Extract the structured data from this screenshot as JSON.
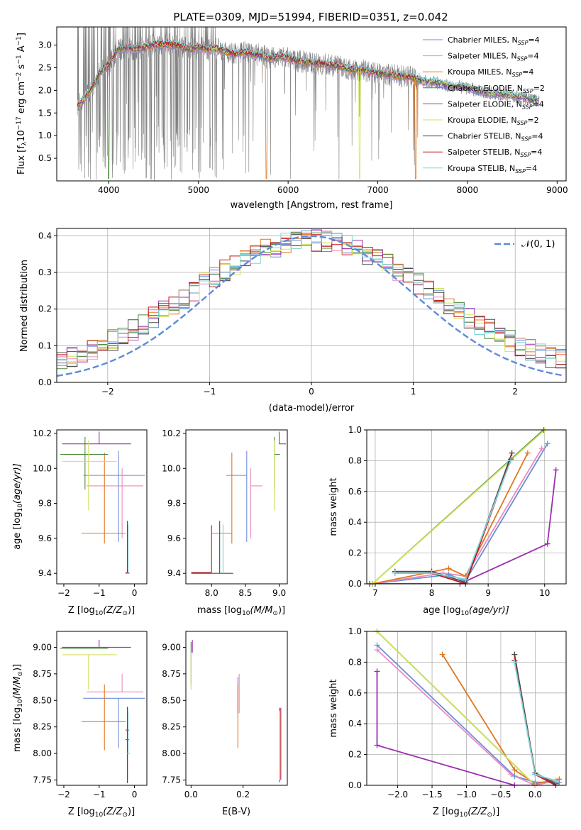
{
  "figure": {
    "title": "PLATE=0309, MJD=51994, FIBERID=0351, z=0.042"
  },
  "series_styles": [
    {
      "name": "Chabrier MILES, N",
      "sub": "SSP",
      "suffix": "=4",
      "color": "#6c8ed6"
    },
    {
      "name": "Salpeter MILES, N",
      "sub": "SSP",
      "suffix": "=4",
      "color": "#e98bbf"
    },
    {
      "name": "Kroupa MILES, N",
      "sub": "SSP",
      "suffix": "=4",
      "color": "#e1761f"
    },
    {
      "name": "Chabrier ELODIE, N",
      "sub": "SSP",
      "suffix": "=2",
      "color": "#4e8a3e"
    },
    {
      "name": "Salpeter ELODIE, N",
      "sub": "SSP",
      "suffix": "=4",
      "color": "#9b2fae"
    },
    {
      "name": "Kroupa ELODIE, N",
      "sub": "SSP",
      "suffix": "=2",
      "color": "#cfe35a"
    },
    {
      "name": "Chabrier STELIB, N",
      "sub": "SSP",
      "suffix": "=4",
      "color": "#4a4a4a"
    },
    {
      "name": "Salpeter STELIB, N",
      "sub": "SSP",
      "suffix": "=4",
      "color": "#c0161c"
    },
    {
      "name": "Kroupa STELIB, N",
      "sub": "SSP",
      "suffix": "=4",
      "color": "#7fd4d8"
    }
  ],
  "chart_data": [
    {
      "id": "spectrum",
      "type": "line",
      "xlabel": "wavelength [Angstrom, rest frame]",
      "ylabel_parts": [
        "Flux [f",
        "λ",
        "10",
        "−17",
        " erg cm",
        "−2",
        " s",
        "−1",
        " A",
        "−1",
        "]"
      ],
      "xlim": [
        3420,
        9100
      ],
      "ylim": [
        0,
        3.4
      ],
      "xticks": [
        4000,
        5000,
        6000,
        7000,
        8000,
        9000
      ],
      "yticks": [
        0.5,
        1.0,
        1.5,
        2.0,
        2.5,
        3.0
      ],
      "data_color": "#808080",
      "model_continuum": {
        "x": [
          3650,
          3700,
          3800,
          3900,
          4000,
          4100,
          4200,
          4300,
          4400,
          4500,
          4600,
          4700,
          4800,
          4900,
          5000,
          5100,
          5200,
          5300,
          5400,
          5500,
          5600,
          5700,
          5800,
          5900,
          6000,
          6100,
          6200,
          6300,
          6400,
          6500,
          6600,
          6700,
          6800,
          6900,
          7000,
          7100,
          7200,
          7300,
          7400,
          7500,
          7600,
          7700,
          7800,
          7900,
          8000,
          8100,
          8200,
          8300,
          8400,
          8500,
          8600,
          8700,
          8800
        ],
        "y": [
          1.65,
          1.75,
          2.0,
          2.4,
          2.55,
          2.9,
          2.95,
          2.9,
          2.95,
          3.0,
          3.02,
          3.0,
          2.98,
          2.9,
          2.95,
          2.9,
          2.92,
          2.85,
          2.8,
          2.85,
          2.8,
          2.78,
          2.7,
          2.75,
          2.72,
          2.65,
          2.62,
          2.6,
          2.58,
          2.55,
          2.52,
          2.45,
          2.45,
          2.42,
          2.38,
          2.35,
          2.32,
          2.3,
          2.28,
          2.2,
          2.18,
          2.15,
          2.1,
          2.08,
          2.05,
          2.0,
          1.95,
          1.92,
          1.9,
          1.88,
          1.85,
          1.8,
          1.75
        ]
      }
    },
    {
      "id": "residuals",
      "type": "histogram",
      "xlabel": "(data-model)/error",
      "ylabel": "Normed distribution",
      "xlim": [
        -2.5,
        2.5
      ],
      "ylim": [
        0,
        0.42
      ],
      "xticks": [
        -2,
        -1,
        0,
        1,
        2
      ],
      "yticks": [
        0.0,
        0.1,
        0.2,
        0.3,
        0.4
      ],
      "legend": "𝒩(0, 1)",
      "gaussian_color": "#5b8bd9",
      "bin_width": 0.1
    },
    {
      "id": "age_vs_Z",
      "type": "scatter",
      "xlabel_parts": [
        "Z [log",
        "10",
        "(Z/Z",
        "⊙",
        ")]"
      ],
      "ylabel_parts": [
        "age  [log",
        "10",
        "(age/yr)]"
      ],
      "xlim": [
        -2.2,
        0.35
      ],
      "ylim": [
        9.34,
        10.22
      ],
      "xticks": [
        -2,
        -1,
        0
      ],
      "yticks": [
        9.4,
        9.6,
        9.8,
        10.0,
        10.2
      ],
      "points": [
        {
          "x": -0.45,
          "y": 9.96,
          "xerr": [
            1.0,
            0.75
          ],
          "yerr": [
            0.38,
            0.14
          ]
        },
        {
          "x": -0.35,
          "y": 9.9,
          "xerr": [
            1.0,
            0.6
          ],
          "yerr": [
            0.3,
            0.1
          ]
        },
        {
          "x": -0.85,
          "y": 9.63,
          "xerr": [
            0.65,
            0.6
          ],
          "yerr": [
            0.06,
            0.46
          ]
        },
        {
          "x": -1.4,
          "y": 10.08,
          "xerr": [
            0.7,
            0.65
          ],
          "yerr": [
            0.2,
            0.1
          ]
        },
        {
          "x": -1.0,
          "y": 10.14,
          "xerr": [
            1.05,
            0.9
          ],
          "yerr": [
            0.0,
            0.07
          ]
        },
        {
          "x": -1.3,
          "y": 10.04,
          "xerr": [
            0.75,
            0.8
          ],
          "yerr": [
            0.28,
            0.12
          ]
        },
        {
          "x": -0.2,
          "y": 9.4,
          "xerr": [
            0.05,
            0.05
          ],
          "yerr": [
            0.0,
            0.3
          ]
        },
        {
          "x": -0.2,
          "y": 9.405,
          "xerr": [
            0.05,
            0.05
          ],
          "yerr": [
            0.0,
            0.27
          ]
        },
        {
          "x": -0.18,
          "y": 9.4,
          "xerr": [
            0.05,
            0.05
          ],
          "yerr": [
            0.0,
            0.28
          ]
        }
      ]
    },
    {
      "id": "age_vs_mass",
      "type": "scatter",
      "xlabel_parts": [
        "mass [log",
        "10",
        "(M/M",
        "⊙",
        ")]"
      ],
      "xlim": [
        7.62,
        9.12
      ],
      "ylim": [
        9.34,
        10.22
      ],
      "xticks": [
        8.0,
        8.5,
        9.0
      ],
      "yticks": [
        9.4,
        9.6,
        9.8,
        10.0,
        10.2
      ],
      "points": [
        {
          "x": 8.52,
          "y": 9.96,
          "xerr": [
            0.3,
            0.0
          ],
          "yerr": [
            0.38,
            0.14
          ]
        },
        {
          "x": 8.58,
          "y": 9.9,
          "xerr": [
            0.0,
            0.17
          ],
          "yerr": [
            0.3,
            0.1
          ]
        },
        {
          "x": 8.3,
          "y": 9.63,
          "xerr": [
            0.3,
            0.0
          ],
          "yerr": [
            0.06,
            0.46
          ]
        },
        {
          "x": 8.93,
          "y": 10.08,
          "xerr": [
            0.0,
            0.08
          ],
          "yerr": [
            0.2,
            0.1
          ]
        },
        {
          "x": 9.0,
          "y": 10.14,
          "xerr": [
            0.0,
            0.1
          ],
          "yerr": [
            0.0,
            0.07
          ]
        },
        {
          "x": 8.93,
          "y": 10.04,
          "xerr": [
            0.0,
            0.0
          ],
          "yerr": [
            0.28,
            0.12
          ]
        },
        {
          "x": 8.12,
          "y": 9.4,
          "xerr": [
            0.42,
            0.2
          ],
          "yerr": [
            0.0,
            0.3
          ]
        },
        {
          "x": 8.0,
          "y": 9.405,
          "xerr": [
            0.3,
            0.0
          ],
          "yerr": [
            0.0,
            0.27
          ]
        },
        {
          "x": 8.17,
          "y": 9.4,
          "xerr": [
            0.0,
            0.0
          ],
          "yerr": [
            0.0,
            0.28
          ]
        }
      ]
    },
    {
      "id": "weight_vs_age",
      "type": "line",
      "xlabel_parts": [
        "age  [log",
        "10",
        "(age/yr)]"
      ],
      "ylabel": "mass weight",
      "xlim": [
        6.85,
        10.38
      ],
      "ylim": [
        0,
        1.0
      ],
      "xticks": [
        7,
        8,
        9,
        10
      ],
      "yticks": [
        0.0,
        0.2,
        0.4,
        0.6,
        0.8,
        1.0
      ],
      "series": [
        {
          "x": [
            6.95,
            8.3,
            8.6,
            10.05
          ],
          "y": [
            0.0,
            0.06,
            0.02,
            0.91
          ]
        },
        {
          "x": [
            6.95,
            8.2,
            8.6,
            9.95
          ],
          "y": [
            0.0,
            0.07,
            0.05,
            0.88
          ]
        },
        {
          "x": [
            6.95,
            8.3,
            8.6,
            9.7
          ],
          "y": [
            0.0,
            0.1,
            0.05,
            0.85
          ]
        },
        {
          "x": [
            6.95,
            9.98
          ],
          "y": [
            0.0,
            1.0
          ]
        },
        {
          "x": [
            6.9,
            8.5,
            10.05,
            10.2
          ],
          "y": [
            0.0,
            0.0,
            0.26,
            0.74
          ]
        },
        {
          "x": [
            6.95,
            10.0
          ],
          "y": [
            0.0,
            1.0
          ]
        },
        {
          "x": [
            7.35,
            8.0,
            8.6,
            9.42
          ],
          "y": [
            0.08,
            0.08,
            0.01,
            0.85
          ]
        },
        {
          "x": [
            7.35,
            8.0,
            8.6,
            9.4
          ],
          "y": [
            0.07,
            0.07,
            0.0,
            0.81
          ]
        },
        {
          "x": [
            7.35,
            8.0,
            8.6,
            9.4
          ],
          "y": [
            0.07,
            0.07,
            0.03,
            0.8
          ]
        }
      ]
    },
    {
      "id": "mass_vs_Z",
      "type": "scatter",
      "xlabel_parts": [
        "Z [log",
        "10",
        "(Z/Z",
        "⊙",
        ")]"
      ],
      "ylabel_parts": [
        "mass [log",
        "10",
        "(M/M",
        "⊙",
        ")]"
      ],
      "xlim": [
        -2.2,
        0.35
      ],
      "ylim": [
        7.7,
        9.15
      ],
      "xticks": [
        -2,
        -1,
        0
      ],
      "yticks": [
        7.75,
        8.0,
        8.25,
        8.5,
        8.75,
        9.0
      ],
      "points": [
        {
          "x": -0.45,
          "y": 8.52,
          "xerr": [
            1.0,
            0.75
          ],
          "yerr": [
            0.47,
            0.0
          ]
        },
        {
          "x": -0.35,
          "y": 8.58,
          "xerr": [
            1.0,
            0.6
          ],
          "yerr": [
            0.0,
            0.17
          ]
        },
        {
          "x": -0.85,
          "y": 8.3,
          "xerr": [
            0.65,
            0.6
          ],
          "yerr": [
            0.27,
            0.35
          ]
        },
        {
          "x": -1.4,
          "y": 8.99,
          "xerr": [
            0.7,
            0.65
          ],
          "yerr": [
            0.0,
            0.0
          ]
        },
        {
          "x": -1.0,
          "y": 9.0,
          "xerr": [
            1.05,
            0.9
          ],
          "yerr": [
            0.0,
            0.07
          ]
        },
        {
          "x": -1.3,
          "y": 8.93,
          "xerr": [
            0.75,
            0.8
          ],
          "yerr": [
            0.33,
            0.0
          ]
        },
        {
          "x": -0.2,
          "y": 8.13,
          "xerr": [
            0.05,
            0.05
          ],
          "yerr": [
            0.4,
            0.3
          ]
        },
        {
          "x": -0.2,
          "y": 8.22,
          "xerr": [
            0.05,
            0.05
          ],
          "yerr": [
            0.5,
            0.22
          ]
        },
        {
          "x": -0.18,
          "y": 8.0,
          "xerr": [
            0.05,
            0.05
          ],
          "yerr": [
            0.0,
            0.4
          ]
        }
      ]
    },
    {
      "id": "mass_vs_ebv",
      "type": "scatter",
      "xlabel": "E(B-V)",
      "xlim": [
        -0.02,
        0.37
      ],
      "ylim": [
        7.7,
        9.15
      ],
      "xticks": [
        0.0,
        0.2
      ],
      "xticklabels": [
        "0.0",
        "0.2"
      ],
      "yticks": [
        7.75,
        8.0,
        8.25,
        8.5,
        8.75,
        9.0
      ],
      "points": [
        {
          "x": 0.18,
          "y": 8.52,
          "yerr": [
            0.15,
            0.2
          ]
        },
        {
          "x": 0.185,
          "y": 8.58,
          "yerr": [
            0.2,
            0.17
          ]
        },
        {
          "x": 0.18,
          "y": 8.35,
          "yerr": [
            0.3,
            0.3
          ]
        },
        {
          "x": 0.0,
          "y": 8.95,
          "yerr": [
            0.3,
            0.1
          ]
        },
        {
          "x": 0.005,
          "y": 9.0,
          "yerr": [
            0.05,
            0.07
          ]
        },
        {
          "x": 0.0,
          "y": 8.85,
          "yerr": [
            0.25,
            0.1
          ]
        },
        {
          "x": 0.34,
          "y": 8.13,
          "yerr": [
            0.4,
            0.3
          ]
        },
        {
          "x": 0.345,
          "y": 8.1,
          "yerr": [
            0.35,
            0.33
          ]
        },
        {
          "x": 0.34,
          "y": 8.0,
          "yerr": [
            0.25,
            0.4
          ]
        }
      ]
    },
    {
      "id": "weight_vs_Z",
      "type": "line",
      "xlabel_parts": [
        "Z [log",
        "10",
        "(Z/Z",
        "⊙",
        ")]"
      ],
      "ylabel": "mass weight",
      "xlim": [
        -2.45,
        0.45
      ],
      "ylim": [
        0,
        1.0
      ],
      "xticks": [
        -2.0,
        -1.5,
        -1.0,
        -0.5,
        0.0
      ],
      "xticklabels": [
        "−2.0",
        "−1.5",
        "−1.0",
        "−0.5",
        "0.0"
      ],
      "yticks": [
        0.0,
        0.2,
        0.4,
        0.6,
        0.8,
        1.0
      ],
      "series": [
        {
          "x": [
            -2.3,
            -0.3,
            0.0,
            0.35
          ],
          "y": [
            0.91,
            0.06,
            0.02,
            0.02
          ]
        },
        {
          "x": [
            -2.3,
            -0.35,
            0.0,
            0.3
          ],
          "y": [
            0.88,
            0.07,
            0.0,
            0.03
          ]
        },
        {
          "x": [
            -1.35,
            -0.3,
            0.0,
            0.35
          ],
          "y": [
            0.85,
            0.1,
            0.01,
            0.04
          ]
        },
        {
          "x": [
            -2.3,
            0.0
          ],
          "y": [
            1.0,
            0.0
          ]
        },
        {
          "x": [
            -2.3,
            -2.3,
            -0.3,
            0.0
          ],
          "y": [
            0.74,
            0.26,
            0.0,
            0.0
          ]
        },
        {
          "x": [
            -2.3,
            0.0
          ],
          "y": [
            1.0,
            0.0
          ]
        },
        {
          "x": [
            -0.3,
            0.0,
            0.3
          ],
          "y": [
            0.85,
            0.08,
            0.01
          ]
        },
        {
          "x": [
            -0.3,
            0.0,
            0.3
          ],
          "y": [
            0.81,
            0.07,
            0.0
          ]
        },
        {
          "x": [
            -0.3,
            0.0,
            0.3
          ],
          "y": [
            0.8,
            0.07,
            0.03
          ]
        }
      ]
    }
  ]
}
